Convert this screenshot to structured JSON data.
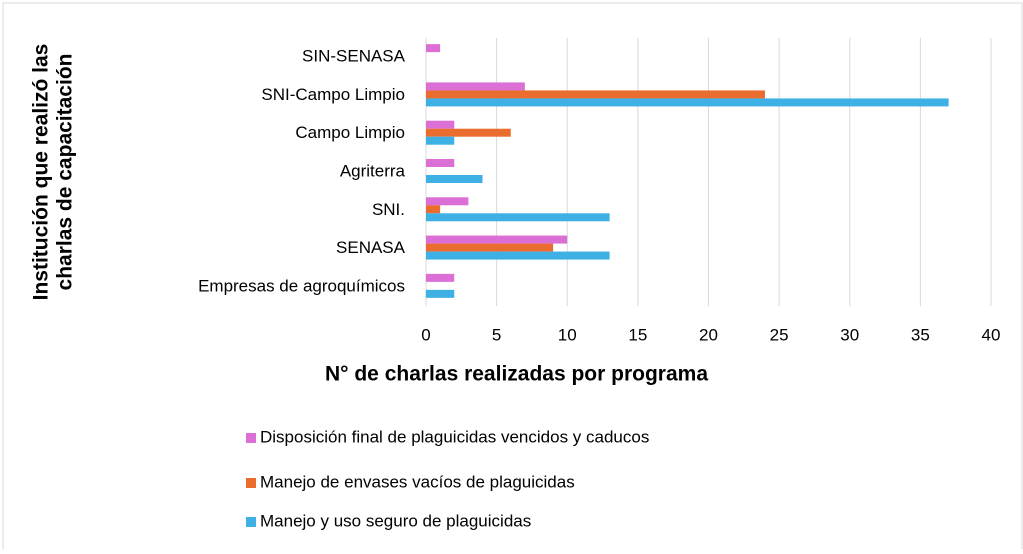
{
  "chart_data": {
    "type": "bar",
    "orientation": "horizontal",
    "xlabel": "N° de charlas realizadas por programa",
    "ylabel": [
      "Institución que realizó las",
      "charlas de capacitación"
    ],
    "categories": [
      "SIN-SENASA",
      "SNI-Campo Limpio",
      "Campo Limpio",
      "Agriterra",
      "SNI.",
      "SENASA",
      "Empresas de agroquímicos"
    ],
    "series": [
      {
        "name": "Disposición final de plaguicidas vencidos y caducos",
        "color": "#db6fd6",
        "values": [
          1,
          7,
          2,
          2,
          3,
          10,
          2
        ]
      },
      {
        "name": "Manejo de envases vacíos de plaguicidas",
        "color": "#ea6c2f",
        "values": [
          0,
          24,
          6,
          0,
          1,
          9,
          0
        ]
      },
      {
        "name": "Manejo y uso seguro de plaguicidas",
        "color": "#3fb0e4",
        "values": [
          0,
          37,
          2,
          4,
          13,
          13,
          2
        ]
      }
    ],
    "xlim": [
      0,
      40
    ],
    "xticks": [
      0,
      5,
      10,
      15,
      20,
      25,
      30,
      35,
      40
    ],
    "grid": true,
    "legend": "bottom"
  }
}
